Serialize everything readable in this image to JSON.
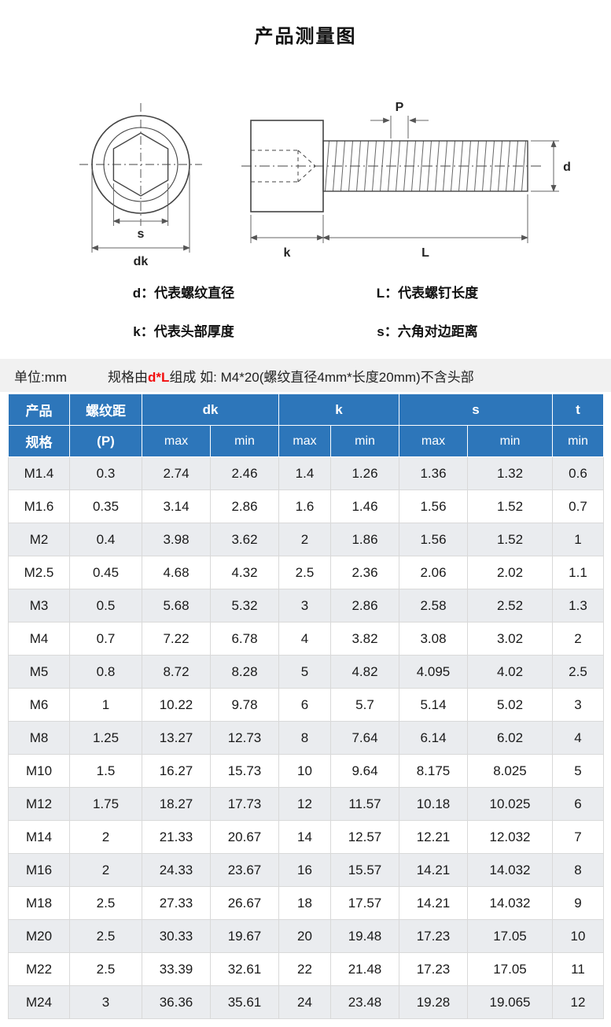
{
  "title": "产品测量图",
  "diagram": {
    "labels": {
      "s": "s",
      "dk": "dk",
      "P": "P",
      "d": "d",
      "k": "k",
      "L": "L"
    },
    "legend": [
      "d：代表螺纹直径",
      "L：代表螺钉长度",
      "k：代表头部厚度",
      "s：六角对边距离"
    ]
  },
  "note": {
    "unit": "单位:mm",
    "spec_prefix": "规格由",
    "spec_red": "d*L",
    "spec_suffix": "组成 如: M4*20(螺纹直径4mm*长度20mm)不含头部"
  },
  "table": {
    "header": {
      "product_top": "产品",
      "product_bottom": "规格",
      "pitch_top": "螺纹距",
      "pitch_bottom": "(P)",
      "dk": "dk",
      "k": "k",
      "s": "s",
      "t": "t",
      "sub": [
        "max",
        "min",
        "max",
        "min",
        "max",
        "min",
        "min"
      ]
    },
    "rows": [
      [
        "M1.4",
        "0.3",
        "2.74",
        "2.46",
        "1.4",
        "1.26",
        "1.36",
        "1.32",
        "0.6"
      ],
      [
        "M1.6",
        "0.35",
        "3.14",
        "2.86",
        "1.6",
        "1.46",
        "1.56",
        "1.52",
        "0.7"
      ],
      [
        "M2",
        "0.4",
        "3.98",
        "3.62",
        "2",
        "1.86",
        "1.56",
        "1.52",
        "1"
      ],
      [
        "M2.5",
        "0.45",
        "4.68",
        "4.32",
        "2.5",
        "2.36",
        "2.06",
        "2.02",
        "1.1"
      ],
      [
        "M3",
        "0.5",
        "5.68",
        "5.32",
        "3",
        "2.86",
        "2.58",
        "2.52",
        "1.3"
      ],
      [
        "M4",
        "0.7",
        "7.22",
        "6.78",
        "4",
        "3.82",
        "3.08",
        "3.02",
        "2"
      ],
      [
        "M5",
        "0.8",
        "8.72",
        "8.28",
        "5",
        "4.82",
        "4.095",
        "4.02",
        "2.5"
      ],
      [
        "M6",
        "1",
        "10.22",
        "9.78",
        "6",
        "5.7",
        "5.14",
        "5.02",
        "3"
      ],
      [
        "M8",
        "1.25",
        "13.27",
        "12.73",
        "8",
        "7.64",
        "6.14",
        "6.02",
        "4"
      ],
      [
        "M10",
        "1.5",
        "16.27",
        "15.73",
        "10",
        "9.64",
        "8.175",
        "8.025",
        "5"
      ],
      [
        "M12",
        "1.75",
        "18.27",
        "17.73",
        "12",
        "11.57",
        "10.18",
        "10.025",
        "6"
      ],
      [
        "M14",
        "2",
        "21.33",
        "20.67",
        "14",
        "12.57",
        "12.21",
        "12.032",
        "7"
      ],
      [
        "M16",
        "2",
        "24.33",
        "23.67",
        "16",
        "15.57",
        "14.21",
        "14.032",
        "8"
      ],
      [
        "M18",
        "2.5",
        "27.33",
        "26.67",
        "18",
        "17.57",
        "14.21",
        "14.032",
        "9"
      ],
      [
        "M20",
        "2.5",
        "30.33",
        "19.67",
        "20",
        "19.48",
        "17.23",
        "17.05",
        "10"
      ],
      [
        "M22",
        "2.5",
        "33.39",
        "32.61",
        "22",
        "21.48",
        "17.23",
        "17.05",
        "11"
      ],
      [
        "M24",
        "3",
        "36.36",
        "35.61",
        "24",
        "23.48",
        "19.28",
        "19.065",
        "12"
      ]
    ]
  },
  "colors": {
    "header_bg": "#2d76ba",
    "row_alt_bg": "#eaecef",
    "accent_red": "#f20d0d"
  }
}
